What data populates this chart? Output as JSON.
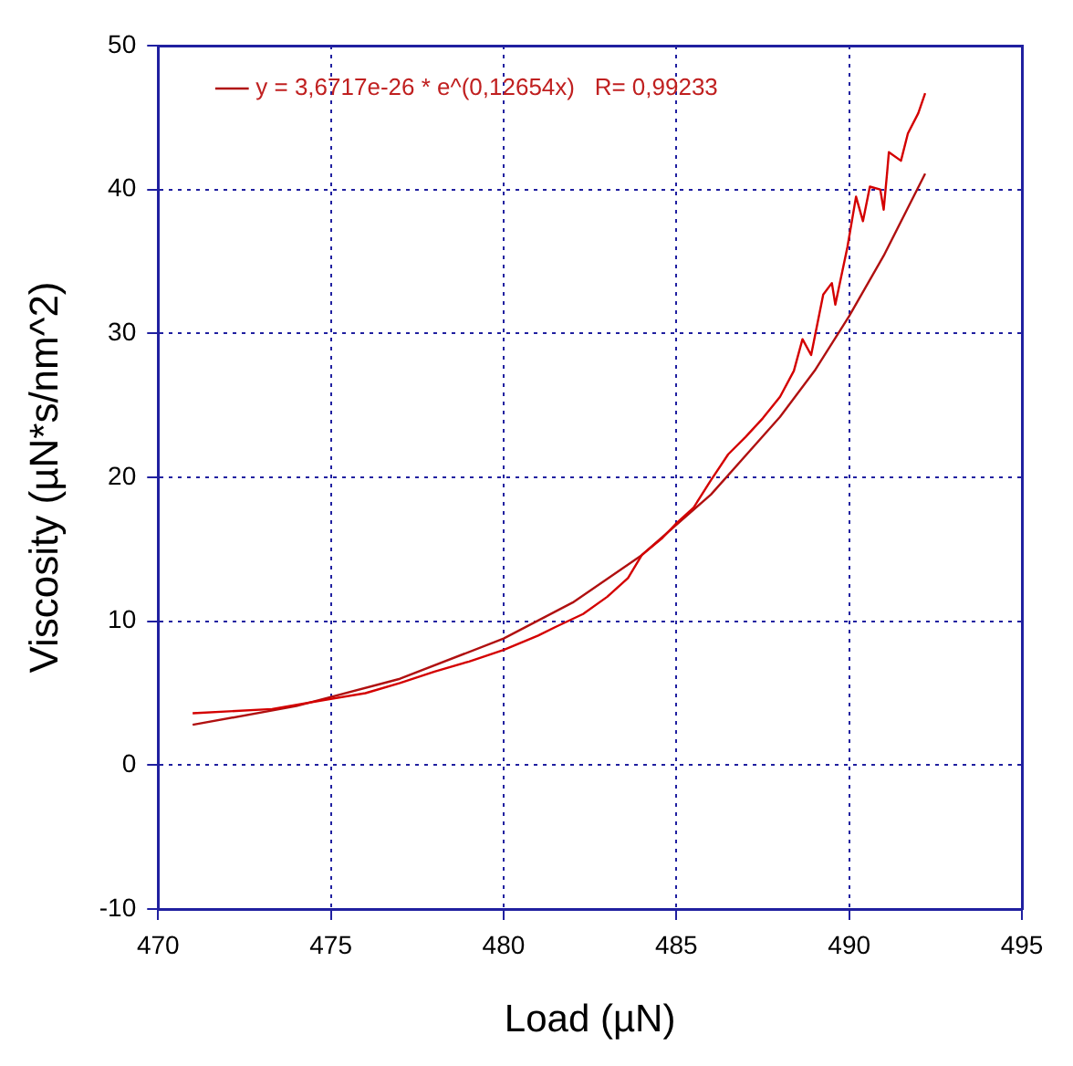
{
  "chart_data": {
    "type": "line",
    "xlabel": "Load (µN)",
    "ylabel": "Viscosity (µN*s/nm^2)",
    "xlim": [
      470,
      495
    ],
    "xticks": [
      470,
      475,
      480,
      485,
      490,
      495
    ],
    "ylim": [
      -10,
      50
    ],
    "yticks": [
      -10,
      0,
      10,
      20,
      30,
      40,
      50
    ],
    "grid": true,
    "legend": "top left",
    "line_style": "solid",
    "marker": "none",
    "series": [
      {
        "color": "#d40000",
        "x": [
          471,
          473.3,
          475,
          476,
          477,
          478,
          479,
          480,
          481,
          481.5,
          482.3,
          483,
          483.6,
          484,
          484.6,
          485,
          485.5,
          486,
          486.5,
          487,
          487.5,
          488,
          488.4,
          488.65,
          488.9,
          489.25,
          489.5,
          489.6,
          489.95,
          490.1,
          490.2,
          490.4,
          490.6,
          490.9,
          491,
          491.1,
          491.15,
          491.5,
          491.7,
          492,
          492.2
        ],
        "values": [
          3.6,
          3.9,
          4.6,
          5.0,
          5.7,
          6.5,
          7.2,
          8.0,
          9.0,
          9.6,
          10.5,
          11.7,
          13.0,
          14.6,
          15.8,
          16.8,
          17.9,
          19.8,
          21.6,
          22.8,
          24.1,
          25.6,
          27.4,
          29.6,
          28.5,
          32.7,
          33.5,
          32.0,
          36.0,
          38.1,
          39.5,
          37.8,
          40.2,
          40.0,
          38.6,
          41.2,
          42.6,
          42.0,
          43.9,
          45.3,
          46.7
        ]
      },
      {
        "name": "y = 3,6717e-26 * e^(0,12654x)   R= 0,99233",
        "color": "#b01010",
        "x": [
          471,
          474,
          477,
          480,
          482,
          484,
          486,
          488,
          489,
          490,
          491,
          492.2
        ],
        "values": [
          2.8,
          4.1,
          6.0,
          8.8,
          11.3,
          14.6,
          18.8,
          24.2,
          27.4,
          31.2,
          35.4,
          41.1
        ]
      }
    ]
  }
}
